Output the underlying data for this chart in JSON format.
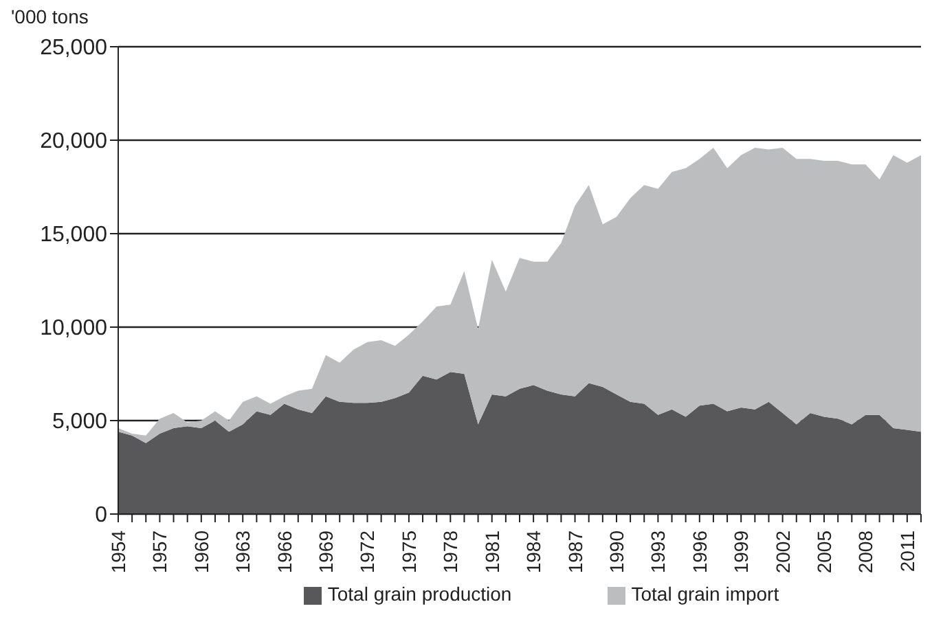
{
  "chart_data": {
    "type": "area",
    "stacked": true,
    "ylabel": "'000 tons",
    "x": [
      1954,
      1955,
      1956,
      1957,
      1958,
      1959,
      1960,
      1961,
      1962,
      1963,
      1964,
      1965,
      1966,
      1967,
      1968,
      1969,
      1970,
      1971,
      1972,
      1973,
      1974,
      1975,
      1976,
      1977,
      1978,
      1979,
      1980,
      1981,
      1982,
      1983,
      1984,
      1985,
      1986,
      1987,
      1988,
      1989,
      1990,
      1991,
      1992,
      1993,
      1994,
      1995,
      1996,
      1997,
      1998,
      1999,
      2000,
      2001,
      2002,
      2003,
      2004,
      2005,
      2006,
      2007,
      2008,
      2009,
      2010,
      2011,
      2012
    ],
    "series": [
      {
        "name": "Total grain production",
        "color": "#58585a",
        "values": [
          4400,
          4200,
          3800,
          4300,
          4600,
          4700,
          4600,
          5000,
          4400,
          4800,
          5500,
          5300,
          5900,
          5600,
          5400,
          6300,
          6000,
          5950,
          5950,
          6000,
          6200,
          6500,
          7400,
          7200,
          7600,
          7500,
          4800,
          6400,
          6300,
          6700,
          6900,
          6600,
          6400,
          6300,
          7000,
          6800,
          6400,
          6000,
          5900,
          5300,
          5600,
          5200,
          5800,
          5900,
          5500,
          5700,
          5600,
          6000,
          5400,
          4800,
          5400,
          5200,
          5100,
          4800,
          5300,
          5300,
          4600,
          4500,
          4400
        ]
      },
      {
        "name": "Total grain import",
        "color": "#bcbdbf",
        "values": [
          200,
          100,
          400,
          800,
          800,
          200,
          400,
          500,
          600,
          1200,
          800,
          600,
          400,
          1000,
          1300,
          2200,
          2100,
          2850,
          3250,
          3300,
          2800,
          3100,
          2900,
          3900,
          3600,
          5500,
          5100,
          7200,
          5600,
          7000,
          6600,
          6900,
          8100,
          10200,
          10600,
          8700,
          9500,
          10900,
          11700,
          12100,
          12700,
          13300,
          13200,
          13700,
          13000,
          13500,
          14000,
          13500,
          14200,
          14200,
          13600,
          13700,
          13800,
          13900,
          13400,
          12600,
          14600,
          14300,
          14800
        ]
      }
    ],
    "xlim": [
      1954,
      2012
    ],
    "xticks": [
      1954,
      {
        "value": 1955,
        "label": null
      },
      {
        "value": 1956,
        "label": null
      },
      1957,
      {
        "value": 1958,
        "label": null
      },
      {
        "value": 1959,
        "label": null
      },
      1960,
      {
        "value": 1961,
        "label": null
      },
      {
        "value": 1962,
        "label": null
      },
      1963,
      {
        "value": 1964,
        "label": null
      },
      {
        "value": 1965,
        "label": null
      },
      1966,
      {
        "value": 1967,
        "label": null
      },
      {
        "value": 1968,
        "label": null
      },
      1969,
      {
        "value": 1970,
        "label": null
      },
      {
        "value": 1971,
        "label": null
      },
      1972,
      {
        "value": 1973,
        "label": null
      },
      {
        "value": 1974,
        "label": null
      },
      1975,
      {
        "value": 1976,
        "label": null
      },
      {
        "value": 1977,
        "label": null
      },
      1978,
      {
        "value": 1979,
        "label": null
      },
      {
        "value": 1980,
        "label": null
      },
      1981,
      {
        "value": 1982,
        "label": null
      },
      {
        "value": 1983,
        "label": null
      },
      1984,
      {
        "value": 1985,
        "label": null
      },
      {
        "value": 1986,
        "label": null
      },
      1987,
      {
        "value": 1988,
        "label": null
      },
      {
        "value": 1989,
        "label": null
      },
      1990,
      {
        "value": 1991,
        "label": null
      },
      {
        "value": 1992,
        "label": null
      },
      1993,
      {
        "value": 1994,
        "label": null
      },
      {
        "value": 1995,
        "label": null
      },
      1996,
      {
        "value": 1997,
        "label": null
      },
      {
        "value": 1998,
        "label": null
      },
      1999,
      {
        "value": 2000,
        "label": null
      },
      {
        "value": 2001,
        "label": null
      },
      2002,
      {
        "value": 2003,
        "label": null
      },
      {
        "value": 2004,
        "label": null
      },
      2005,
      {
        "value": 2006,
        "label": null
      },
      {
        "value": 2007,
        "label": null
      },
      2008,
      {
        "value": 2009,
        "label": null
      },
      {
        "value": 2010,
        "label": null
      },
      2011,
      {
        "value": 2012,
        "label": null
      }
    ],
    "ylim": [
      0,
      25000
    ],
    "yticks": [
      0,
      {
        "value": 5000,
        "label": "5,000"
      },
      {
        "value": 10000,
        "label": "10,000"
      },
      {
        "value": 15000,
        "label": "15,000"
      },
      {
        "value": 20000,
        "label": "20,000"
      },
      {
        "value": 25000,
        "label": "25,000"
      }
    ],
    "grid": "y",
    "legend": "bottom"
  }
}
